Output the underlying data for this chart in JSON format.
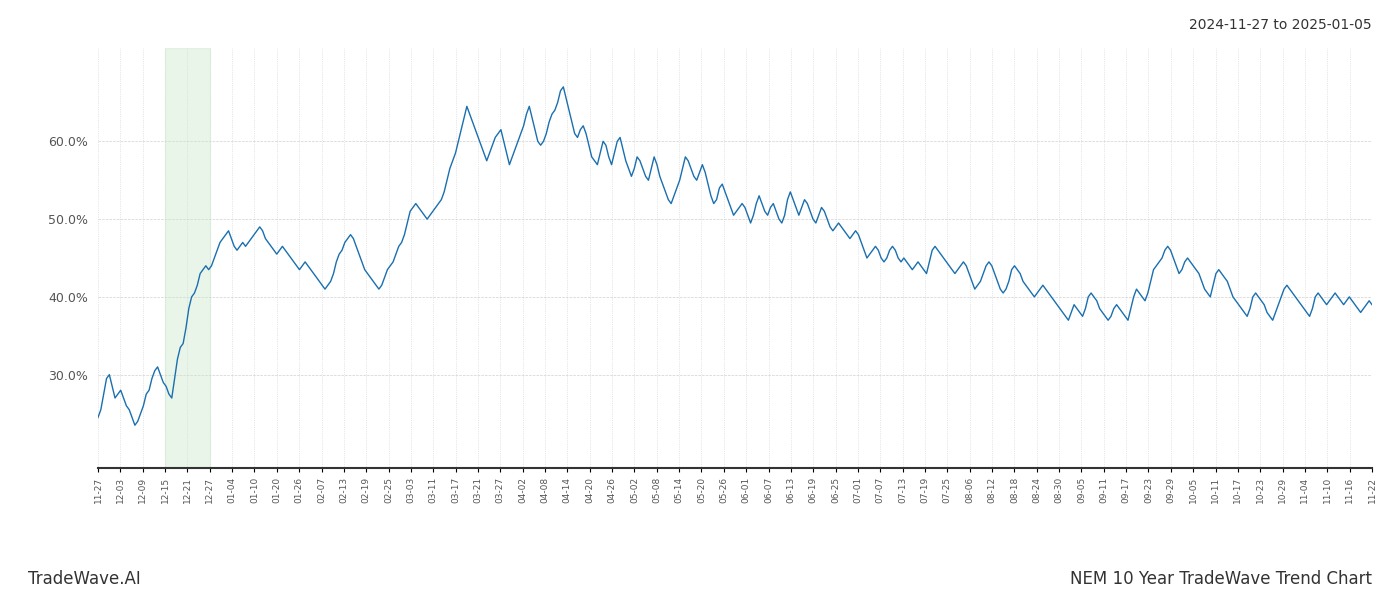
{
  "title_topright": "2024-11-27 to 2025-01-05",
  "title_bottomleft": "TradeWave.AI",
  "title_bottomright": "NEM 10 Year TradeWave Trend Chart",
  "line_color": "#1a6faf",
  "line_width": 1.0,
  "shade_color": "#c8e6c9",
  "shade_alpha": 0.4,
  "background_color": "#ffffff",
  "grid_color": "#d0d0d0",
  "ylim": [
    18,
    72
  ],
  "yticks": [
    30,
    40,
    50,
    60
  ],
  "x_labels": [
    "11-27",
    "12-03",
    "12-09",
    "12-15",
    "12-21",
    "12-27",
    "01-04",
    "01-10",
    "01-20",
    "01-26",
    "02-07",
    "02-13",
    "02-19",
    "02-25",
    "03-03",
    "03-11",
    "03-17",
    "03-21",
    "03-27",
    "04-02",
    "04-08",
    "04-14",
    "04-20",
    "04-26",
    "05-02",
    "05-08",
    "05-14",
    "05-20",
    "05-26",
    "06-01",
    "06-07",
    "06-13",
    "06-19",
    "06-25",
    "07-01",
    "07-07",
    "07-13",
    "07-19",
    "07-25",
    "08-06",
    "08-12",
    "08-18",
    "08-24",
    "08-30",
    "09-05",
    "09-11",
    "09-17",
    "09-23",
    "09-29",
    "10-05",
    "10-11",
    "10-17",
    "10-23",
    "10-29",
    "11-04",
    "11-10",
    "11-16",
    "11-22"
  ],
  "shade_label_start": "12-15",
  "shade_label_end": "12-27",
  "y_values": [
    24.5,
    25.5,
    27.5,
    29.5,
    30.0,
    28.5,
    27.0,
    27.5,
    28.0,
    27.0,
    26.0,
    25.5,
    24.5,
    23.5,
    24.0,
    25.0,
    26.0,
    27.5,
    28.0,
    29.5,
    30.5,
    31.0,
    30.0,
    29.0,
    28.5,
    27.5,
    27.0,
    29.5,
    32.0,
    33.5,
    34.0,
    36.0,
    38.5,
    40.0,
    40.5,
    41.5,
    43.0,
    43.5,
    44.0,
    43.5,
    44.0,
    45.0,
    46.0,
    47.0,
    47.5,
    48.0,
    48.5,
    47.5,
    46.5,
    46.0,
    46.5,
    47.0,
    46.5,
    47.0,
    47.5,
    48.0,
    48.5,
    49.0,
    48.5,
    47.5,
    47.0,
    46.5,
    46.0,
    45.5,
    46.0,
    46.5,
    46.0,
    45.5,
    45.0,
    44.5,
    44.0,
    43.5,
    44.0,
    44.5,
    44.0,
    43.5,
    43.0,
    42.5,
    42.0,
    41.5,
    41.0,
    41.5,
    42.0,
    43.0,
    44.5,
    45.5,
    46.0,
    47.0,
    47.5,
    48.0,
    47.5,
    46.5,
    45.5,
    44.5,
    43.5,
    43.0,
    42.5,
    42.0,
    41.5,
    41.0,
    41.5,
    42.5,
    43.5,
    44.0,
    44.5,
    45.5,
    46.5,
    47.0,
    48.0,
    49.5,
    51.0,
    51.5,
    52.0,
    51.5,
    51.0,
    50.5,
    50.0,
    50.5,
    51.0,
    51.5,
    52.0,
    52.5,
    53.5,
    55.0,
    56.5,
    57.5,
    58.5,
    60.0,
    61.5,
    63.0,
    64.5,
    63.5,
    62.5,
    61.5,
    60.5,
    59.5,
    58.5,
    57.5,
    58.5,
    59.5,
    60.5,
    61.0,
    61.5,
    60.0,
    58.5,
    57.0,
    58.0,
    59.0,
    60.0,
    61.0,
    62.0,
    63.5,
    64.5,
    63.0,
    61.5,
    60.0,
    59.5,
    60.0,
    61.0,
    62.5,
    63.5,
    64.0,
    65.0,
    66.5,
    67.0,
    65.5,
    64.0,
    62.5,
    61.0,
    60.5,
    61.5,
    62.0,
    61.0,
    59.5,
    58.0,
    57.5,
    57.0,
    58.5,
    60.0,
    59.5,
    58.0,
    57.0,
    58.5,
    60.0,
    60.5,
    59.0,
    57.5,
    56.5,
    55.5,
    56.5,
    58.0,
    57.5,
    56.5,
    55.5,
    55.0,
    56.5,
    58.0,
    57.0,
    55.5,
    54.5,
    53.5,
    52.5,
    52.0,
    53.0,
    54.0,
    55.0,
    56.5,
    58.0,
    57.5,
    56.5,
    55.5,
    55.0,
    56.0,
    57.0,
    56.0,
    54.5,
    53.0,
    52.0,
    52.5,
    54.0,
    54.5,
    53.5,
    52.5,
    51.5,
    50.5,
    51.0,
    51.5,
    52.0,
    51.5,
    50.5,
    49.5,
    50.5,
    52.0,
    53.0,
    52.0,
    51.0,
    50.5,
    51.5,
    52.0,
    51.0,
    50.0,
    49.5,
    50.5,
    52.5,
    53.5,
    52.5,
    51.5,
    50.5,
    51.5,
    52.5,
    52.0,
    51.0,
    50.0,
    49.5,
    50.5,
    51.5,
    51.0,
    50.0,
    49.0,
    48.5,
    49.0,
    49.5,
    49.0,
    48.5,
    48.0,
    47.5,
    48.0,
    48.5,
    48.0,
    47.0,
    46.0,
    45.0,
    45.5,
    46.0,
    46.5,
    46.0,
    45.0,
    44.5,
    45.0,
    46.0,
    46.5,
    46.0,
    45.0,
    44.5,
    45.0,
    44.5,
    44.0,
    43.5,
    44.0,
    44.5,
    44.0,
    43.5,
    43.0,
    44.5,
    46.0,
    46.5,
    46.0,
    45.5,
    45.0,
    44.5,
    44.0,
    43.5,
    43.0,
    43.5,
    44.0,
    44.5,
    44.0,
    43.0,
    42.0,
    41.0,
    41.5,
    42.0,
    43.0,
    44.0,
    44.5,
    44.0,
    43.0,
    42.0,
    41.0,
    40.5,
    41.0,
    42.0,
    43.5,
    44.0,
    43.5,
    43.0,
    42.0,
    41.5,
    41.0,
    40.5,
    40.0,
    40.5,
    41.0,
    41.5,
    41.0,
    40.5,
    40.0,
    39.5,
    39.0,
    38.5,
    38.0,
    37.5,
    37.0,
    38.0,
    39.0,
    38.5,
    38.0,
    37.5,
    38.5,
    40.0,
    40.5,
    40.0,
    39.5,
    38.5,
    38.0,
    37.5,
    37.0,
    37.5,
    38.5,
    39.0,
    38.5,
    38.0,
    37.5,
    37.0,
    38.5,
    40.0,
    41.0,
    40.5,
    40.0,
    39.5,
    40.5,
    42.0,
    43.5,
    44.0,
    44.5,
    45.0,
    46.0,
    46.5,
    46.0,
    45.0,
    44.0,
    43.0,
    43.5,
    44.5,
    45.0,
    44.5,
    44.0,
    43.5,
    43.0,
    42.0,
    41.0,
    40.5,
    40.0,
    41.5,
    43.0,
    43.5,
    43.0,
    42.5,
    42.0,
    41.0,
    40.0,
    39.5,
    39.0,
    38.5,
    38.0,
    37.5,
    38.5,
    40.0,
    40.5,
    40.0,
    39.5,
    39.0,
    38.0,
    37.5,
    37.0,
    38.0,
    39.0,
    40.0,
    41.0,
    41.5,
    41.0,
    40.5,
    40.0,
    39.5,
    39.0,
    38.5,
    38.0,
    37.5,
    38.5,
    40.0,
    40.5,
    40.0,
    39.5,
    39.0,
    39.5,
    40.0,
    40.5,
    40.0,
    39.5,
    39.0,
    39.5,
    40.0,
    39.5,
    39.0,
    38.5,
    38.0,
    38.5,
    39.0,
    39.5,
    39.0
  ]
}
